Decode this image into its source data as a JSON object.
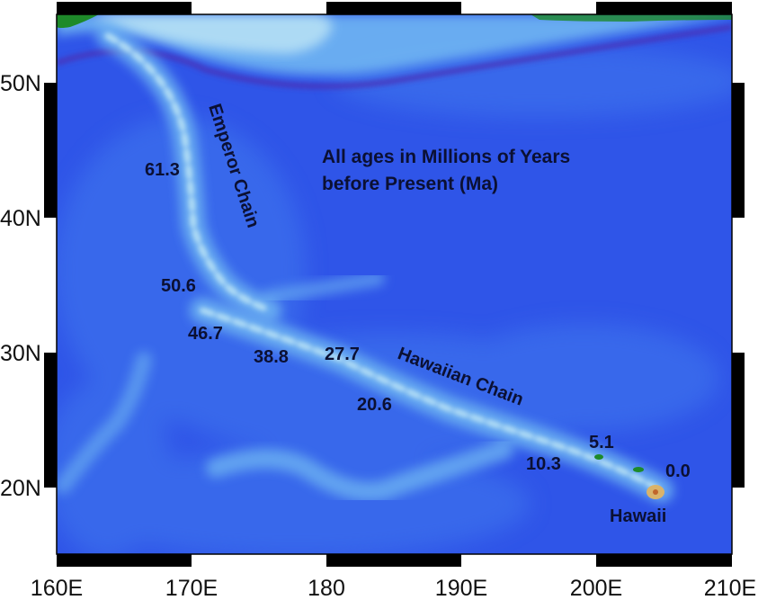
{
  "map": {
    "colors": {
      "ocean_deep": "#2f55e8",
      "ocean_mid": "#3f78ee",
      "ocean_shallow": "#6fb6f2",
      "shoal": "#bfe6f5",
      "trench": "#4a32b8",
      "land_green": "#1e8a2a",
      "land_tan": "#d9b36b",
      "frame": "#000000"
    },
    "note_line1": "All ages in Millions of Years",
    "note_line2": "before Present (Ma)",
    "emperor_chain_label": "Emperor Chain",
    "hawaiian_chain_label": "Hawaiian Chain",
    "hawaii_label": "Hawaii",
    "ages": [
      "61.3",
      "50.6",
      "46.7",
      "38.8",
      "27.7",
      "20.6",
      "10.3",
      "5.1",
      "0.0"
    ],
    "x_axis_labels": [
      "160E",
      "170E",
      "180",
      "190E",
      "200E",
      "210E"
    ],
    "y_axis_labels": [
      "50N",
      "40N",
      "30N",
      "20N"
    ]
  }
}
